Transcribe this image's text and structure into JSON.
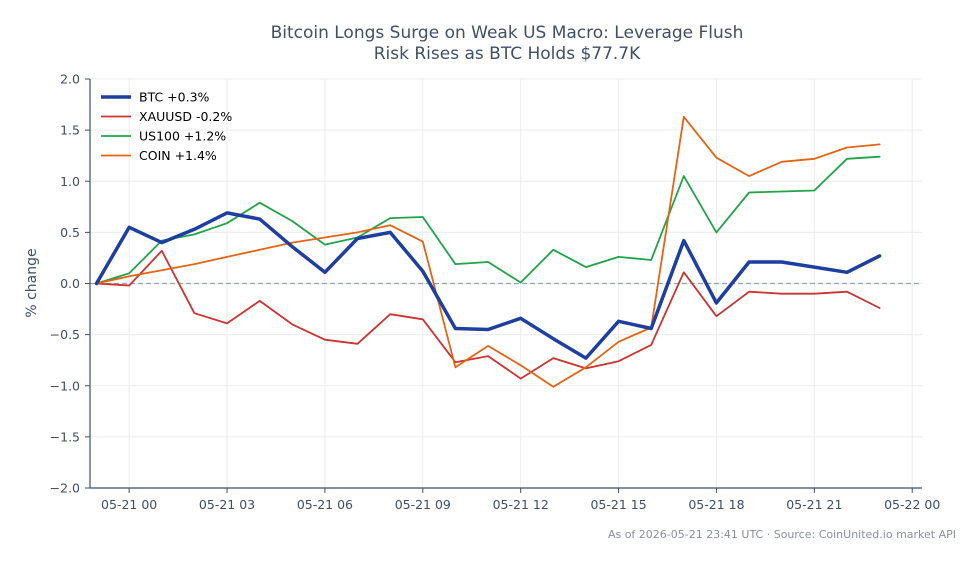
{
  "chart_data": {
    "type": "line",
    "title": [
      "Bitcoin Longs Surge on Weak US Macro: Leverage Flush",
      "Risk Rises as BTC Holds $77.7K"
    ],
    "ylabel": "% change",
    "xlabel": "",
    "ylim": [
      -2.0,
      2.0
    ],
    "yticks": [
      2.0,
      1.5,
      1.0,
      0.5,
      0.0,
      -0.5,
      -1.0,
      -1.5,
      -2.0
    ],
    "ytick_labels": [
      "2.0",
      "1.5",
      "1.0",
      "0.5",
      "0.0",
      "−0.5",
      "−1.0",
      "−1.5",
      "−2.0"
    ],
    "xlim_hours": [
      -1.2,
      24.3
    ],
    "xticks_hours": [
      0,
      3,
      6,
      9,
      12,
      15,
      18,
      21,
      24
    ],
    "xtick_labels": [
      "05-21 00",
      "05-21 03",
      "05-21 06",
      "05-21 09",
      "05-21 12",
      "05-21 15",
      "05-21 18",
      "05-21 21",
      "05-22 00"
    ],
    "grid": true,
    "zero_line": true,
    "legend_position": "top-left",
    "x_hours": [
      -1,
      0,
      1,
      2,
      3,
      4,
      5,
      6,
      7,
      8,
      9,
      10,
      11,
      12,
      13,
      14,
      15,
      16,
      17,
      18,
      19,
      20,
      21,
      22,
      23
    ],
    "series": [
      {
        "name": "BTC +0.3%",
        "color": "#1f3fa0",
        "width": 3.5,
        "values": [
          0.0,
          0.55,
          0.4,
          0.53,
          0.69,
          0.63,
          0.36,
          0.11,
          0.44,
          0.5,
          0.12,
          -0.44,
          -0.45,
          -0.34,
          -0.54,
          -0.73,
          -0.37,
          -0.44,
          0.42,
          -0.19,
          0.21,
          0.21,
          0.16,
          0.11,
          0.27
        ]
      },
      {
        "name": "XAUUSD -0.2%",
        "color": "#cc3333",
        "width": 1.8,
        "values": [
          0.0,
          -0.02,
          0.32,
          -0.29,
          -0.39,
          -0.17,
          -0.4,
          -0.55,
          -0.59,
          -0.3,
          -0.35,
          -0.77,
          -0.71,
          -0.93,
          -0.73,
          -0.83,
          -0.76,
          -0.6,
          0.11,
          -0.32,
          -0.08,
          -0.1,
          -0.1,
          -0.08,
          -0.24
        ]
      },
      {
        "name": "US100 +1.2%",
        "color": "#22a34a",
        "width": 1.8,
        "values": [
          0.0,
          0.1,
          0.42,
          0.48,
          0.59,
          0.79,
          0.61,
          0.38,
          0.45,
          0.64,
          0.65,
          0.19,
          0.21,
          0.01,
          0.33,
          0.16,
          0.26,
          0.23,
          1.05,
          0.5,
          0.89,
          0.9,
          0.91,
          1.22,
          1.24
        ]
      },
      {
        "name": "COIN +1.4%",
        "color": "#e36414",
        "width": 1.8,
        "values": [
          0.0,
          0.07,
          0.13,
          0.19,
          0.26,
          0.33,
          0.4,
          0.45,
          0.5,
          0.57,
          0.41,
          -0.82,
          -0.61,
          -0.8,
          -1.01,
          -0.82,
          -0.57,
          -0.43,
          1.63,
          1.23,
          1.05,
          1.19,
          1.22,
          1.33,
          1.36
        ]
      }
    ],
    "source_note": "As of 2026-05-21 23:41 UTC · Source: CoinUnited.io market API"
  },
  "colors": {
    "axis": "#3f4f66",
    "grid": "#ececec",
    "zero_line": "#8fa3bf"
  }
}
